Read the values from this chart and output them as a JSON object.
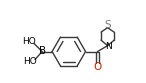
{
  "bg_color": "#ffffff",
  "line_color": "#3a3a3a",
  "atom_color": "#000000",
  "sulfur_color": "#7a7a7a",
  "oxygen_color": "#cc2200",
  "nitrogen_color": "#000000",
  "boron_color": "#000000",
  "fig_width": 1.46,
  "fig_height": 0.83,
  "dpi": 100,
  "lw": 1.0,
  "ring_R": 1.0,
  "inner_scale": 0.7,
  "xlim": [
    -3.0,
    3.5
  ],
  "ylim": [
    -1.8,
    3.0
  ]
}
